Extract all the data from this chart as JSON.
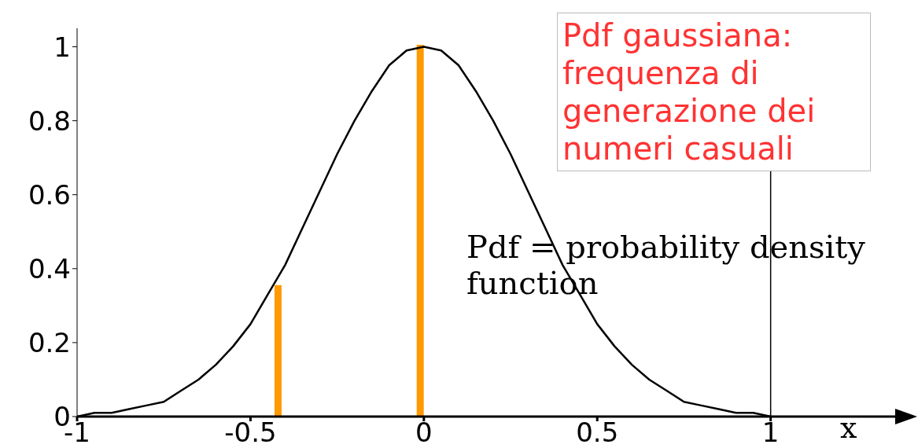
{
  "chart_data": {
    "type": "line",
    "xlabel": "x",
    "xlim": [
      -1,
      1.4
    ],
    "xticks": [
      -1,
      -0.5,
      0,
      0.5,
      1
    ],
    "ylim": [
      0,
      1.05
    ],
    "yticks": [
      0,
      0.2,
      0.4,
      0.6,
      0.8,
      1
    ],
    "marker": "none",
    "series": [
      {
        "color": "#000000",
        "x": [
          -1,
          -0.95,
          -0.9,
          -0.85,
          -0.8,
          -0.75,
          -0.7,
          -0.65,
          -0.6,
          -0.55,
          -0.5,
          -0.45,
          -0.4,
          -0.35,
          -0.3,
          -0.25,
          -0.2,
          -0.15,
          -0.1,
          -0.05,
          0,
          0.05,
          0.1,
          0.15,
          0.2,
          0.25,
          0.3,
          0.35,
          0.4,
          0.45,
          0.5,
          0.55,
          0.6,
          0.65,
          0.7,
          0.75,
          0.8,
          0.85,
          0.9,
          0.95,
          1
        ],
        "values": [
          0,
          0.01,
          0.01,
          0.02,
          0.03,
          0.04,
          0.07,
          0.1,
          0.14,
          0.19,
          0.25,
          0.33,
          0.41,
          0.51,
          0.61,
          0.71,
          0.8,
          0.88,
          0.95,
          0.99,
          1,
          0.99,
          0.95,
          0.88,
          0.8,
          0.71,
          0.61,
          0.51,
          0.41,
          0.33,
          0.25,
          0.19,
          0.14,
          0.1,
          0.07,
          0.04,
          0.03,
          0.02,
          0.01,
          0.01,
          0
        ]
      },
      {
        "type": "bar",
        "color": "#ff9900",
        "x": [
          -0.42,
          -0.01
        ],
        "values": [
          0.35,
          1
        ]
      }
    ],
    "annotations": [
      "Pdf gaussiana: frequenza di generazione dei numeri casuali",
      "Pdf = probability density function"
    ]
  }
}
